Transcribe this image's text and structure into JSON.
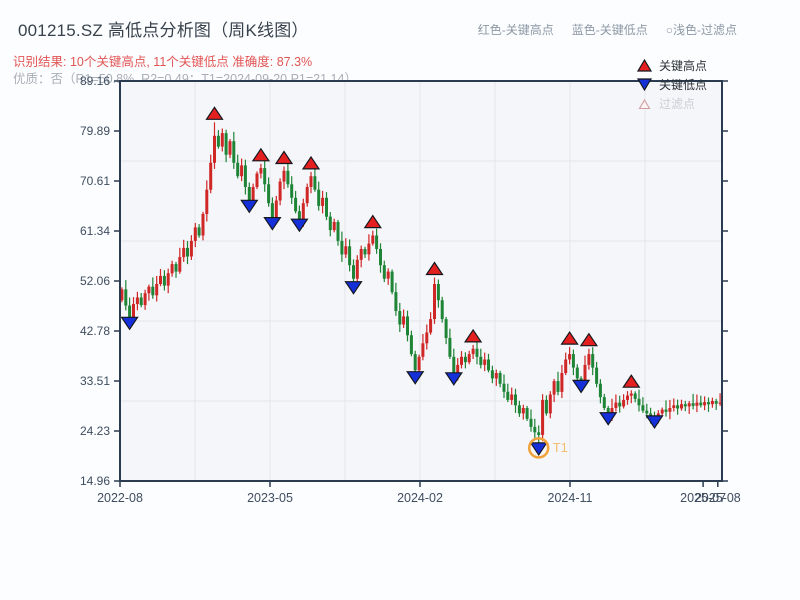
{
  "header": {
    "title": "001215.SZ 高低点分析图（周K线图）",
    "color_key": [
      "红色-关键高点",
      "蓝色-关键低点",
      "○浅色-过滤点"
    ],
    "result_line": "识别结果: 10个关键高点, 11个关键低点  准确度: 87.3%",
    "quality_line": "优质：否（R1=50.8%, R2=0.49；T1=2024-09-20 P1=21.14）"
  },
  "legend": {
    "items": [
      {
        "label": "关键高点",
        "symbol": "triangle-up",
        "color": "#e31f1f",
        "muted": false
      },
      {
        "label": "关键低点",
        "symbol": "triangle-down",
        "color": "#1630d9",
        "muted": false
      },
      {
        "label": "过滤点",
        "symbol": "triangle-up-outline",
        "color": "#fdf3f3",
        "muted": true
      }
    ]
  },
  "chart_data": {
    "type": "candlestick",
    "title": "001215.SZ 高低点分析图（周K线图）",
    "frequency": "weekly",
    "plot": {
      "l": 120,
      "t": 81,
      "r": 722,
      "b": 481
    },
    "y_range": [
      14.96,
      89.16
    ],
    "y_ticks": [
      "89.16",
      "79.89",
      "70.61",
      "61.34",
      "52.06",
      "42.78",
      "33.51",
      "24.23",
      "14.96"
    ],
    "x_ticks": [
      {
        "label": "2022-08",
        "week": 0
      },
      {
        "label": "2023-05",
        "week": 38.87
      },
      {
        "label": "2024-02",
        "week": 77.74
      },
      {
        "label": "2024-11",
        "week": 116.61
      },
      {
        "label": "2025-07",
        "week": 151.1
      },
      {
        "label": "2025-08",
        "week": 154.9
      }
    ],
    "h_gridlines": [
      74.32,
      59.48,
      44.64,
      29.8
    ],
    "v_gridlines": [
      19.44,
      38.87,
      58.31,
      77.74,
      97.18,
      116.61,
      136.05
    ],
    "first_open": 48.5,
    "weekly_closes": [
      50.5,
      47.5,
      45.2,
      47.8,
      49.0,
      47.6,
      49.8,
      51.0,
      49.4,
      51.5,
      53.0,
      51.2,
      53.5,
      55.2,
      53.8,
      56.5,
      58.2,
      56.6,
      59.5,
      62.0,
      60.5,
      64.5,
      69.0,
      74.0,
      79.0,
      77.0,
      79.5,
      75.5,
      78.0,
      74.0,
      71.5,
      73.5,
      69.5,
      67.0,
      69.5,
      72.0,
      73.0,
      70.0,
      66.5,
      63.8,
      67.0,
      70.5,
      72.5,
      70.0,
      67.5,
      65.0,
      63.5,
      66.5,
      69.5,
      71.5,
      69.0,
      66.0,
      67.5,
      64.0,
      61.5,
      63.0,
      59.5,
      57.0,
      58.5,
      55.0,
      52.5,
      56.0,
      58.0,
      57.0,
      59.0,
      60.5,
      58.0,
      55.0,
      52.5,
      53.8,
      50.0,
      46.5,
      44.0,
      45.5,
      42.0,
      38.5,
      35.5,
      38.0,
      40.5,
      42.5,
      45.0,
      51.5,
      48.5,
      45.0,
      41.5,
      38.0,
      35.0,
      36.5,
      38.0,
      37.0,
      38.5,
      39.5,
      38.0,
      36.5,
      37.5,
      35.5,
      34.0,
      35.0,
      33.0,
      31.5,
      30.0,
      31.0,
      29.0,
      27.5,
      28.5,
      26.5,
      25.0,
      24.0,
      23.5,
      30.0,
      27.5,
      31.0,
      33.5,
      31.5,
      35.0,
      37.5,
      38.5,
      36.0,
      34.0,
      33.5,
      36.5,
      38.5,
      36.0,
      33.0,
      30.5,
      28.5,
      27.5,
      28.5,
      29.5,
      28.8,
      30.0,
      30.8,
      31.2,
      30.2,
      29.0,
      28.0,
      27.5,
      27.0,
      26.8,
      27.5,
      28.2,
      27.8,
      28.5,
      29.0,
      28.4,
      29.2,
      28.8,
      29.4,
      28.9,
      29.5,
      29.0,
      29.6,
      29.2,
      29.8,
      29.3,
      29.5
    ],
    "markers": {
      "key_highs": [
        {
          "week": 24,
          "price": 81.5
        },
        {
          "week": 36,
          "price": 73.8
        },
        {
          "week": 42,
          "price": 73.3
        },
        {
          "week": 49,
          "price": 72.3
        },
        {
          "week": 65,
          "price": 61.4
        },
        {
          "week": 81,
          "price": 52.7
        },
        {
          "week": 91,
          "price": 40.2
        },
        {
          "week": 116,
          "price": 39.8
        },
        {
          "week": 121,
          "price": 39.5
        },
        {
          "week": 132,
          "price": 31.8
        }
      ],
      "key_lows": [
        {
          "week": 2,
          "price": 44.4
        },
        {
          "week": 33,
          "price": 66.1
        },
        {
          "week": 39,
          "price": 62.9
        },
        {
          "week": 46,
          "price": 62.6
        },
        {
          "week": 60,
          "price": 51.0
        },
        {
          "week": 76,
          "price": 34.3
        },
        {
          "week": 86,
          "price": 34.1
        },
        {
          "week": 108,
          "price": 21.1,
          "t1": true
        },
        {
          "week": 119,
          "price": 32.7
        },
        {
          "week": 126,
          "price": 26.7
        },
        {
          "week": 138,
          "price": 26.1
        }
      ]
    },
    "annotation": {
      "label": "T1",
      "week": 108,
      "price": 21.1,
      "ring_color": "#f2a23a",
      "text_color": "#f5bd72"
    },
    "colors": {
      "up": "#cf2626",
      "down": "#1e8436",
      "marker_high": "#e31f1f",
      "marker_low": "#1630d9",
      "plot_bg": "#f5f6f9",
      "grid": "#e3e6ec",
      "axis": "#2c3c50",
      "tick_label": "#3e4d60"
    }
  }
}
